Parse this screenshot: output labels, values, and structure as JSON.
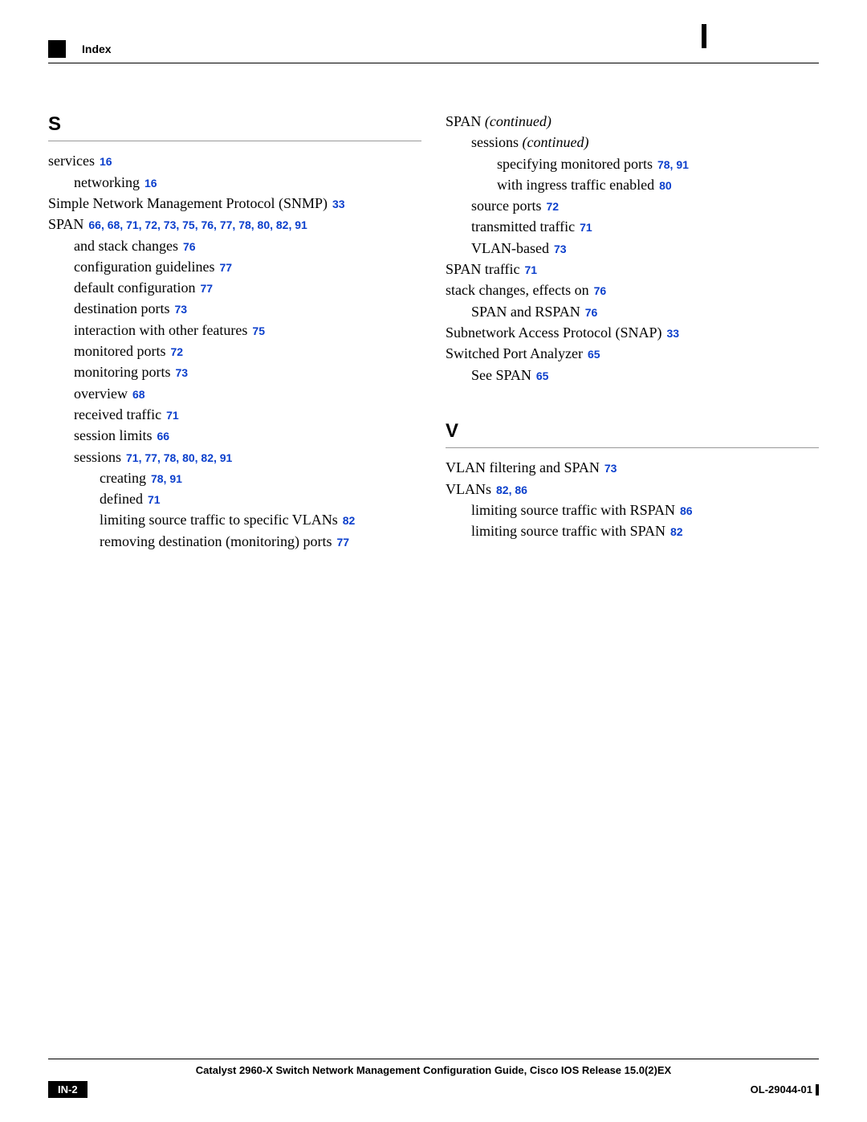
{
  "header": {
    "label": "Index"
  },
  "left": {
    "letter": "S",
    "entries": [
      {
        "text": "services",
        "pages": "16",
        "indent": 0
      },
      {
        "text": "networking",
        "pages": "16",
        "indent": 1
      },
      {
        "text": "Simple Network Management Protocol (SNMP)",
        "pages": "33",
        "indent": 0
      },
      {
        "text": "SPAN",
        "pages": "66, 68, 71, 72, 73, 75, 76, 77, 78, 80, 82, 91",
        "indent": 0
      },
      {
        "text": "and stack changes",
        "pages": "76",
        "indent": 1
      },
      {
        "text": "configuration guidelines",
        "pages": "77",
        "indent": 1
      },
      {
        "text": "default configuration",
        "pages": "77",
        "indent": 1
      },
      {
        "text": "destination ports",
        "pages": "73",
        "indent": 1
      },
      {
        "text": "interaction with other features",
        "pages": "75",
        "indent": 1
      },
      {
        "text": "monitored ports",
        "pages": "72",
        "indent": 1
      },
      {
        "text": "monitoring ports",
        "pages": "73",
        "indent": 1
      },
      {
        "text": "overview",
        "pages": "68",
        "indent": 1
      },
      {
        "text": "received traffic",
        "pages": "71",
        "indent": 1
      },
      {
        "text": "session limits",
        "pages": "66",
        "indent": 1
      },
      {
        "text": "sessions",
        "pages": "71, 77, 78, 80, 82, 91",
        "indent": 1
      },
      {
        "text": "creating",
        "pages": "78, 91",
        "indent": 2
      },
      {
        "text": "defined",
        "pages": "71",
        "indent": 2
      },
      {
        "text": "limiting source traffic to specific VLANs",
        "pages": "82",
        "indent": 2
      },
      {
        "text": "removing destination (monitoring) ports",
        "pages": "77",
        "indent": 2
      }
    ]
  },
  "right_top": {
    "cont1": {
      "text": "SPAN",
      "suffix": "(continued)"
    },
    "cont2": {
      "text": "sessions",
      "suffix": "(continued)"
    },
    "entries": [
      {
        "text": "specifying monitored ports",
        "pages": "78, 91",
        "indent": 2
      },
      {
        "text": "with ingress traffic enabled",
        "pages": "80",
        "indent": 2
      },
      {
        "text": "source ports",
        "pages": "72",
        "indent": 1
      },
      {
        "text": "transmitted traffic",
        "pages": "71",
        "indent": 1
      },
      {
        "text": "VLAN-based",
        "pages": "73",
        "indent": 1
      },
      {
        "text": "SPAN traffic",
        "pages": "71",
        "indent": 0
      },
      {
        "text": "stack changes, effects on",
        "pages": "76",
        "indent": 0
      },
      {
        "text": "SPAN and RSPAN",
        "pages": "76",
        "indent": 1
      },
      {
        "text": "Subnetwork Access Protocol (SNAP)",
        "pages": "33",
        "indent": 0
      },
      {
        "text": "Switched Port Analyzer",
        "pages": "65",
        "indent": 0
      },
      {
        "text": "See SPAN",
        "pages": "65",
        "indent": 1
      }
    ]
  },
  "right_v": {
    "letter": "V",
    "entries": [
      {
        "text": "VLAN filtering and SPAN",
        "pages": "73",
        "indent": 0
      },
      {
        "text": "VLANs",
        "pages": "82, 86",
        "indent": 0
      },
      {
        "text": "limiting source traffic with RSPAN",
        "pages": "86",
        "indent": 1
      },
      {
        "text": "limiting source traffic with SPAN",
        "pages": "82",
        "indent": 1
      }
    ]
  },
  "footer": {
    "title": "Catalyst 2960-X Switch Network Management Configuration Guide, Cisco IOS Release 15.0(2)EX",
    "page": "IN-2",
    "docid": "OL-29044-01"
  }
}
